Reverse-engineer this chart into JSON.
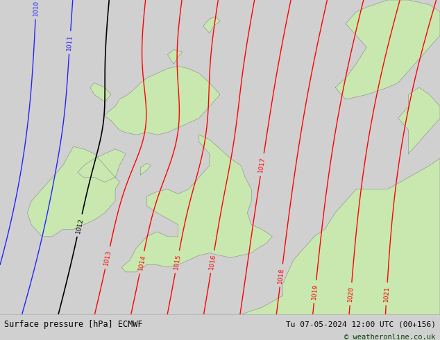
{
  "title_left": "Surface pressure [hPa] ECMWF",
  "title_right": "Tu 07-05-2024 12:00 UTC (00+156)",
  "copyright": "© weatheronline.co.uk",
  "background_color": "#d0d0d0",
  "land_color": "#c8e8b0",
  "sea_color": "#d0d0d0",
  "contour_color_red": "#ff0000",
  "contour_color_blue": "#2222ff",
  "contour_color_black": "#000000",
  "bottom_bar_color": "#e0e0e0",
  "bottom_text_color": "#000000",
  "fig_width": 6.34,
  "fig_height": 4.9,
  "dpi": 100,
  "lon_min": -11.5,
  "lon_max": 9.5,
  "lat_min": 48.2,
  "lat_max": 61.5
}
